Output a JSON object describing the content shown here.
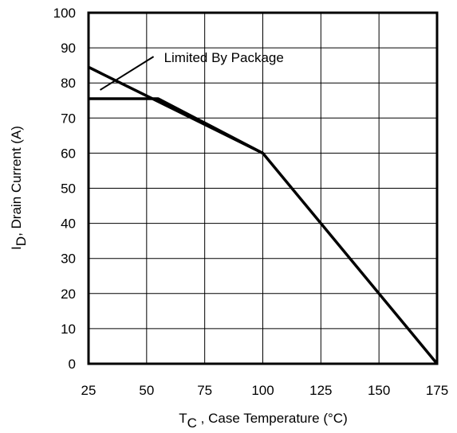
{
  "chart_data": {
    "type": "line",
    "xlabel": {
      "main": "T",
      "sub": "C",
      "rest": " , Case Temperature (°C)"
    },
    "ylabel": {
      "main": "I",
      "sub": "D",
      "rest": ",  Drain Current (A)"
    },
    "xlim": [
      25,
      175
    ],
    "ylim": [
      0,
      100
    ],
    "x_ticks": [
      "25",
      "50",
      "75",
      "100",
      "125",
      "150",
      "175"
    ],
    "y_ticks": [
      "0",
      "10",
      "20",
      "30",
      "40",
      "50",
      "60",
      "70",
      "80",
      "90",
      "100"
    ],
    "grid": true,
    "series": [
      {
        "x": [
          25,
          100,
          175
        ],
        "y": [
          84.5,
          60,
          0
        ]
      },
      {
        "x": [
          25,
          55,
          100
        ],
        "y": [
          75.5,
          75.5,
          60
        ]
      }
    ],
    "annotations": [
      {
        "text": "Limited By Package",
        "target": [
          30,
          78
        ],
        "label_anchor": [
          53,
          87.5
        ]
      }
    ]
  }
}
